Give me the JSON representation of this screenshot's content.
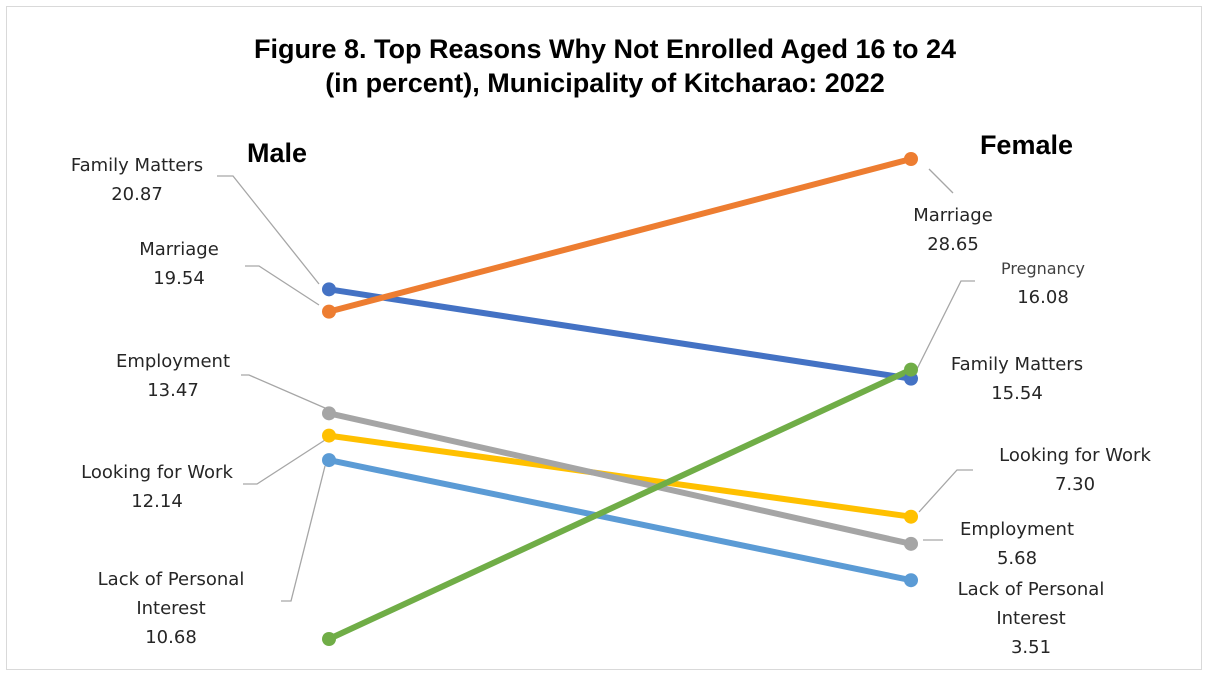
{
  "chart_data": {
    "type": "line",
    "title_lines": [
      "Figure 8. Top Reasons Why Not Enrolled Aged 16 to 24",
      "(in percent), Municipality of Kitcharao: 2022"
    ],
    "categories": [
      "Male",
      "Female"
    ],
    "series": [
      {
        "name": "Family Matters",
        "label_lines": [
          "Family Matters"
        ],
        "values": [
          20.87,
          15.54
        ],
        "value_text": [
          "20.87",
          "15.54"
        ],
        "color": "#4472c4"
      },
      {
        "name": "Marriage",
        "label_lines": [
          "Marriage"
        ],
        "values": [
          19.54,
          28.65
        ],
        "value_text": [
          "19.54",
          "28.65"
        ],
        "color": "#ed7d31"
      },
      {
        "name": "Employment",
        "label_lines": [
          "Employment"
        ],
        "values": [
          13.47,
          5.68
        ],
        "value_text": [
          "13.47",
          "5.68"
        ],
        "color": "#a5a5a5"
      },
      {
        "name": "Looking for Work",
        "label_lines": [
          "Looking for Work"
        ],
        "values": [
          12.14,
          7.3
        ],
        "value_text": [
          "12.14",
          "7.30"
        ],
        "color": "#ffc000"
      },
      {
        "name": "Lack of Personal Interest",
        "label_lines": [
          "Lack of Personal",
          "Interest"
        ],
        "values": [
          10.68,
          3.51
        ],
        "value_text": [
          "10.68",
          "3.51"
        ],
        "color": "#5b9bd5"
      },
      {
        "name": "Pregnancy",
        "label_lines": [
          "Pregnancy"
        ],
        "values": [
          null,
          16.08
        ],
        "value_text": [
          null,
          "16.08"
        ],
        "color": "#70ad47"
      }
    ]
  }
}
